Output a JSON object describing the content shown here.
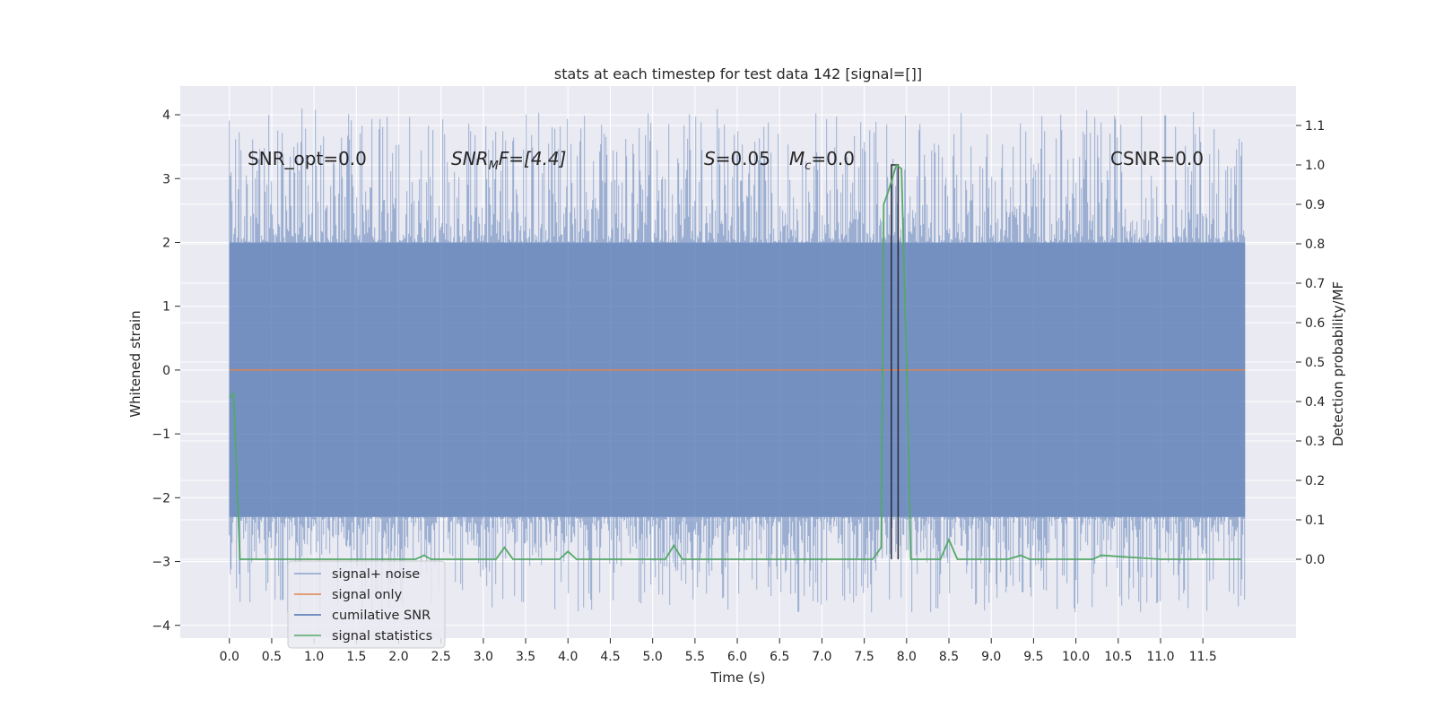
{
  "chart_data": {
    "type": "line",
    "title": "stats at each timestep for test data 142 [signal=[]]",
    "xlabel": "Time (s)",
    "ylabel_left": "Whitened strain",
    "ylabel_right": "Detection probability/MF",
    "xlim": [
      -0.58,
      12.6
    ],
    "ylim_left": [
      -4.2,
      4.45
    ],
    "ylim_right": [
      -0.2,
      1.2
    ],
    "x_ticks": [
      "0.0",
      "0.5",
      "1.0",
      "1.5",
      "2.0",
      "2.5",
      "3.0",
      "3.5",
      "4.0",
      "4.5",
      "5.0",
      "5.5",
      "6.0",
      "6.5",
      "7.0",
      "7.5",
      "8.0",
      "8.5",
      "9.0",
      "9.5",
      "10.0",
      "10.5",
      "11.0",
      "11.5"
    ],
    "y_ticks_left": [
      "4",
      "3",
      "2",
      "1",
      "0",
      "−1",
      "−2",
      "−3",
      "−4"
    ],
    "y_ticks_right": [
      "1.1",
      "1.0",
      "0.9",
      "0.8",
      "0.7",
      "0.6",
      "0.5",
      "0.4",
      "0.3",
      "0.2",
      "0.1",
      "0.0"
    ],
    "annotations": {
      "snr_opt": "SNR_opt=0.0",
      "snr_mf_main": "SNR",
      "snr_mf_sub": "M",
      "snr_mf_rest": "F=[4.4]",
      "s_main": "S",
      "s_rest": "=0.05",
      "mc_main": "M",
      "mc_sub": "c",
      "mc_rest": "=0.0",
      "csnr": "CSNR=0.0"
    },
    "legend_position": "lower-left",
    "colors": {
      "signal_noise": "#4c72b0",
      "signal_only": "#dd8452",
      "cumulative_snr": "#4c72b0",
      "signal_statistics": "#55a868",
      "background": "#eaeaf2",
      "grid": "#ffffff"
    },
    "series": [
      {
        "name": "signal+ noise",
        "axis": "left",
        "x_range": [
          0.0,
          12.0
        ],
        "envelope_upper": 2.0,
        "envelope_lower": -2.3,
        "peak_max": 4.1,
        "peak_min": -3.8
      },
      {
        "name": "signal only",
        "axis": "left",
        "x": [
          0.0,
          12.0
        ],
        "y": [
          0.0,
          0.0
        ]
      },
      {
        "name": "cumilative SNR",
        "axis": "right",
        "x": [
          7.82,
          7.82,
          7.9,
          7.9
        ],
        "y": [
          0.0,
          1.0,
          1.0,
          0.0
        ]
      },
      {
        "name": "signal statistics",
        "axis": "right",
        "x": [
          0.0,
          0.05,
          0.125,
          0.14,
          2.2,
          2.3,
          2.38,
          3.0,
          3.15,
          3.25,
          3.35,
          3.5,
          3.7,
          3.9,
          4.0,
          4.1,
          4.5,
          5.0,
          5.15,
          5.25,
          5.35,
          5.5,
          6.0,
          6.5,
          7.0,
          7.5,
          7.6,
          7.7,
          7.73,
          7.78,
          7.88,
          7.94,
          8.0,
          8.05,
          8.2,
          8.4,
          8.5,
          8.6,
          9.0,
          9.2,
          9.35,
          9.45,
          9.55,
          10.0,
          10.2,
          10.3,
          11.0,
          11.5,
          11.95
        ],
        "y": [
          0.41,
          0.42,
          0.0,
          0.0,
          0.0,
          0.01,
          0.0,
          0.0,
          0.0,
          0.03,
          0.0,
          0.0,
          0.0,
          0.0,
          0.02,
          0.0,
          0.0,
          0.0,
          0.0,
          0.035,
          0.0,
          0.0,
          0.0,
          0.0,
          0.0,
          0.0,
          0.0,
          0.03,
          0.9,
          0.93,
          1.0,
          0.99,
          0.5,
          0.0,
          0.0,
          0.0,
          0.05,
          0.0,
          0.0,
          0.0,
          0.01,
          0.0,
          0.0,
          0.0,
          0.0,
          0.01,
          0.0,
          0.0,
          0.0
        ]
      }
    ]
  }
}
